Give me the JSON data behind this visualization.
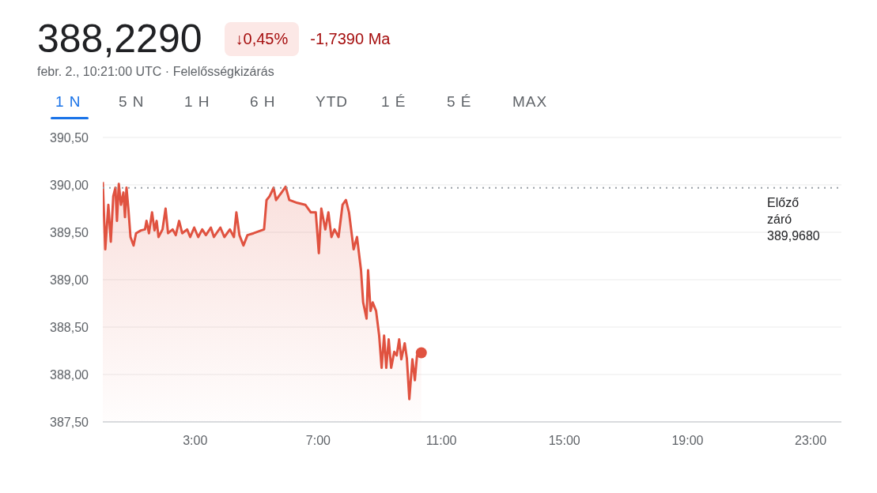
{
  "chart_data": {
    "type": "area",
    "title": "388,2290",
    "subtitle": "febr. 2., 10:21:00 UTC · Felelősségkizárás",
    "annotations": [
      "↓0,45%",
      "-1,7390 Ma",
      "1 N",
      "5 N",
      "1 H",
      "6 H",
      "YTD",
      "1 É",
      "5 É",
      "MAX"
    ],
    "xlim": [
      0,
      24
    ],
    "xticks": [
      {
        "value": 3,
        "label": "3:00"
      },
      {
        "value": 7,
        "label": "7:00"
      },
      {
        "value": 11,
        "label": "11:00"
      },
      {
        "value": 15,
        "label": "15:00"
      },
      {
        "value": 19,
        "label": "19:00"
      },
      {
        "value": 23,
        "label": "23:00"
      }
    ],
    "ylim": [
      387.5,
      390.5
    ],
    "yticks": [
      {
        "value": 387.5,
        "label": "387,50"
      },
      {
        "value": 388,
        "label": "388,00"
      },
      {
        "value": 388.5,
        "label": "388,50"
      },
      {
        "value": 389,
        "label": "389,00"
      },
      {
        "value": 389.5,
        "label": "389,50"
      },
      {
        "value": 390,
        "label": "390,00"
      },
      {
        "value": 390.5,
        "label": "390,50"
      }
    ],
    "grid": "y",
    "legend": false,
    "marker": "none",
    "line_style": "solid",
    "ref_lines": [
      {
        "axis": "y",
        "value": 389.968,
        "label": "Előző záró 389,9680",
        "color": "#9aa0a6",
        "line_style": "dotted"
      }
    ],
    "series": [
      {
        "color": "#e05240",
        "x": [
          0,
          0.08,
          0.18,
          0.26,
          0.34,
          0.41,
          0.46,
          0.52,
          0.59,
          0.67,
          0.72,
          0.77,
          0.83,
          0.9,
          1.0,
          1.08,
          1.24,
          1.37,
          1.42,
          1.5,
          1.6,
          1.68,
          1.75,
          1.81,
          1.94,
          2.04,
          2.12,
          2.27,
          2.37,
          2.48,
          2.58,
          2.74,
          2.84,
          2.97,
          3.1,
          3.23,
          3.35,
          3.51,
          3.61,
          3.82,
          3.95,
          4.13,
          4.26,
          4.34,
          4.44,
          4.57,
          4.7,
          4.9,
          5.24,
          5.32,
          5.42,
          5.55,
          5.63,
          5.81,
          5.94,
          6.06,
          6.32,
          6.58,
          6.76,
          6.92,
          7.02,
          7.1,
          7.23,
          7.33,
          7.43,
          7.53,
          7.66,
          7.79,
          7.9,
          8.0,
          8.15,
          8.26,
          8.39,
          8.46,
          8.57,
          8.62,
          8.7,
          8.77,
          8.88,
          8.98,
          9.06,
          9.14,
          9.21,
          9.29,
          9.37,
          9.47,
          9.55,
          9.63,
          9.7,
          9.81,
          9.88,
          9.96,
          10.06,
          10.14,
          10.21,
          10.35
        ],
        "values": [
          390.03,
          389.32,
          389.79,
          389.4,
          389.88,
          389.97,
          389.62,
          390.01,
          389.79,
          389.92,
          389.66,
          389.97,
          389.75,
          389.45,
          389.36,
          389.49,
          389.52,
          389.53,
          389.62,
          389.49,
          389.71,
          389.52,
          389.62,
          389.45,
          389.53,
          389.75,
          389.49,
          389.53,
          389.47,
          389.62,
          389.49,
          389.53,
          389.45,
          389.55,
          389.45,
          389.53,
          389.47,
          389.55,
          389.45,
          389.55,
          389.45,
          389.53,
          389.45,
          389.71,
          389.47,
          389.36,
          389.47,
          389.49,
          389.53,
          389.84,
          389.88,
          389.97,
          389.84,
          389.92,
          389.98,
          389.84,
          389.81,
          389.79,
          389.71,
          389.71,
          389.28,
          389.75,
          389.53,
          389.71,
          389.45,
          389.53,
          389.45,
          389.79,
          389.84,
          389.71,
          389.32,
          389.45,
          389.1,
          388.76,
          388.59,
          389.1,
          388.67,
          388.76,
          388.67,
          388.41,
          388.07,
          388.41,
          388.07,
          388.37,
          388.07,
          388.24,
          388.2,
          388.37,
          388.16,
          388.33,
          388.17,
          387.74,
          388.16,
          387.94,
          388.2,
          388.229
        ]
      },
      {
        "type": "scatter",
        "marker": "circle",
        "color": "#e05240",
        "x": [
          10.35
        ],
        "values": [
          388.229
        ]
      }
    ]
  }
}
